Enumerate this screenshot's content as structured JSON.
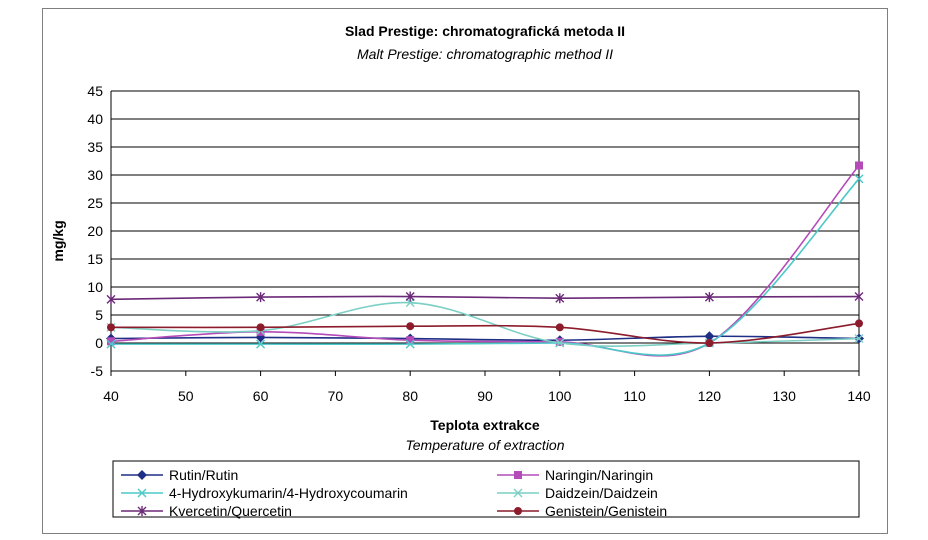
{
  "chart_data": {
    "type": "line",
    "title": "Slad Prestige: chromatografická metoda II",
    "subtitle": "Malt Prestige: chromatographic method II",
    "xlabel": "Teplota extrakce",
    "xlabel_sub": "Temperature of extraction",
    "ylabel": "mg/kg",
    "xlim": [
      40,
      140
    ],
    "ylim": [
      -5,
      45
    ],
    "xticks": [
      40,
      50,
      60,
      70,
      80,
      90,
      100,
      110,
      120,
      130,
      140
    ],
    "yticks": [
      -5,
      0,
      5,
      10,
      15,
      20,
      25,
      30,
      35,
      40,
      45
    ],
    "grid": "horizontal",
    "legend_position": "bottom",
    "smooth": true,
    "x": [
      40,
      60,
      80,
      100,
      120,
      140
    ],
    "series": [
      {
        "name": "Rutin/Rutin",
        "values": [
          0.8,
          1.0,
          0.8,
          0.5,
          1.2,
          0.8
        ],
        "color": "#1f2f86",
        "marker": "diamond"
      },
      {
        "name": "Naringin/Naringin",
        "values": [
          0.3,
          2.0,
          0.5,
          0.2,
          0.0,
          31.7
        ],
        "color": "#b44bb8",
        "marker": "square"
      },
      {
        "name": "4-Hydroxykumarin/4-Hydroxycoumarin",
        "values": [
          -0.2,
          -0.2,
          -0.2,
          0.0,
          0.0,
          29.3
        ],
        "color": "#4cc8c8",
        "marker": "x"
      },
      {
        "name": "Daidzein/Daidzein",
        "values": [
          2.8,
          2.2,
          7.2,
          0.0,
          0.0,
          0.8
        ],
        "color": "#7ccfc4",
        "marker": "x"
      },
      {
        "name": "Kvercetin/Quercetin",
        "values": [
          7.8,
          8.2,
          8.3,
          8.0,
          8.2,
          8.3
        ],
        "color": "#6b2a78",
        "marker": "star"
      },
      {
        "name": "Genistein/Genistein",
        "values": [
          2.8,
          2.8,
          3.0,
          2.8,
          0.0,
          3.5
        ],
        "color": "#8c1c2c",
        "marker": "circle"
      }
    ]
  }
}
